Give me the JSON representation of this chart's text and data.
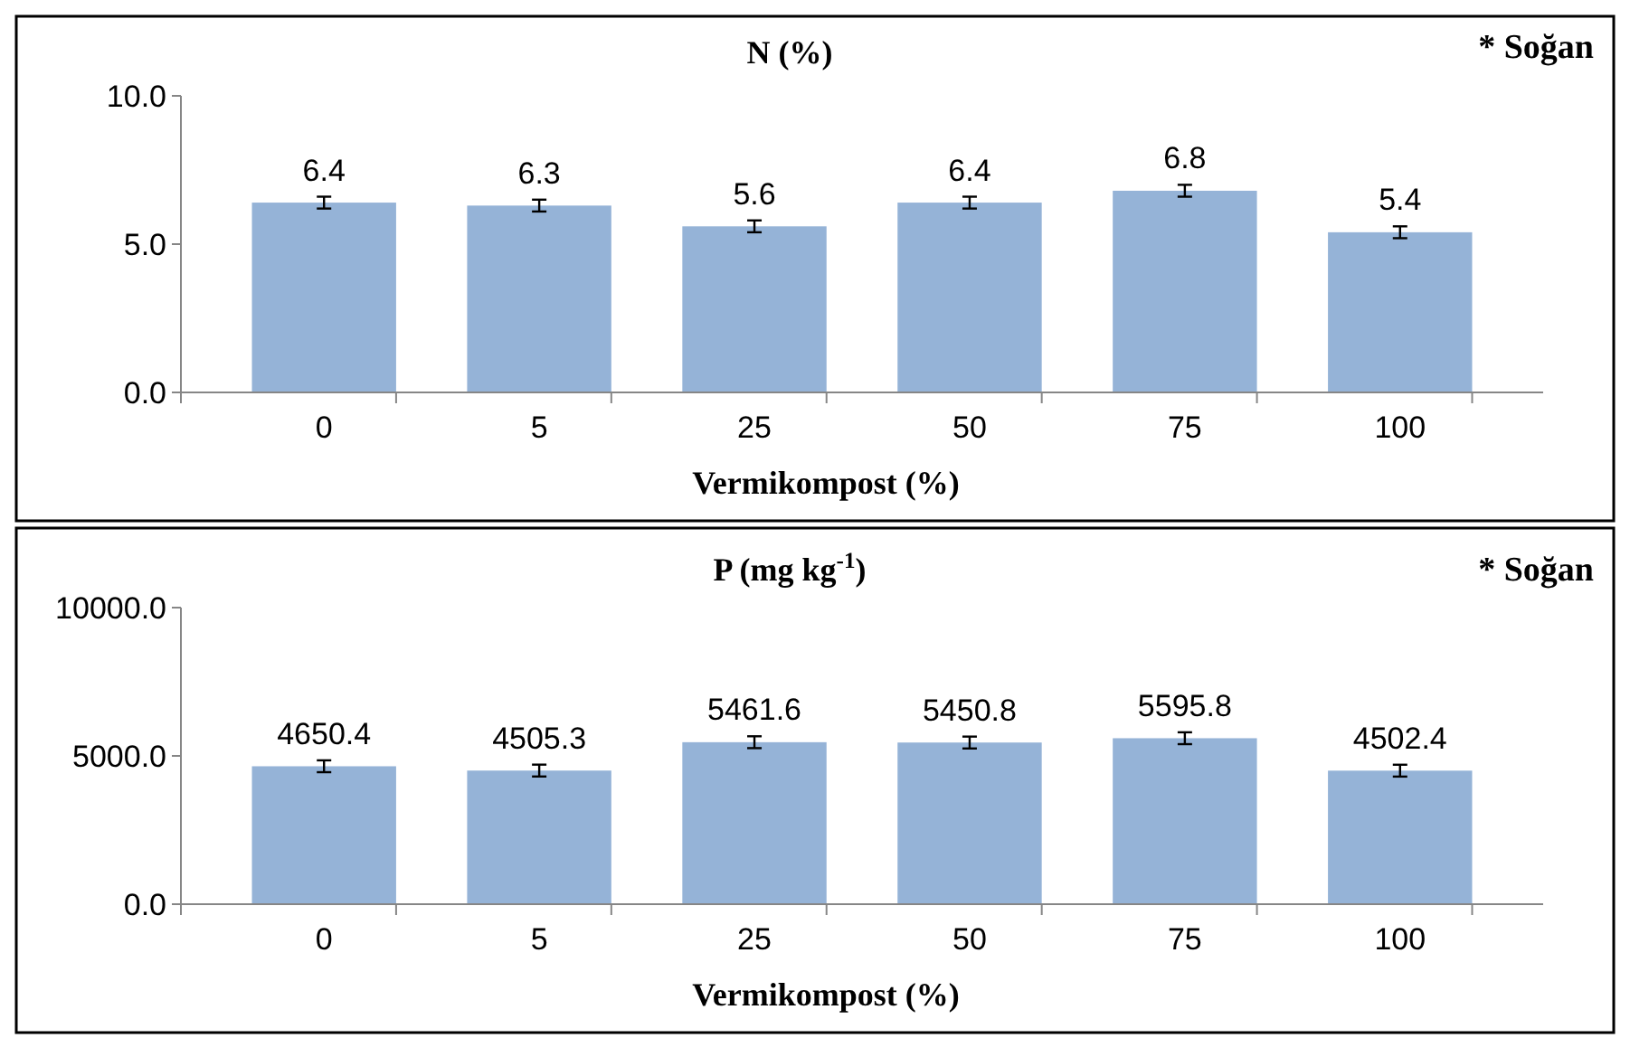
{
  "chart_data": [
    {
      "type": "bar",
      "title": "N (%)",
      "xlabel": "Vermikompost (%)",
      "annotations": [
        "* Soğan"
      ],
      "categories": [
        "0",
        "5",
        "25",
        "50",
        "75",
        "100"
      ],
      "values": [
        6.4,
        6.3,
        5.6,
        6.4,
        6.8,
        5.4
      ],
      "errors": [
        0.2,
        0.2,
        0.2,
        0.2,
        0.2,
        0.2
      ],
      "color": "#95b3d7",
      "ylim": [
        0,
        10
      ],
      "yticks": [
        {
          "value": 0,
          "label": "0.0"
        },
        {
          "value": 5,
          "label": "5.0"
        },
        {
          "value": 10,
          "label": "10.0"
        }
      ],
      "data_labels": true
    },
    {
      "type": "bar",
      "title": "P (mg kg$^{-1}$)",
      "xlabel": "Vermikompost (%)",
      "annotations": [
        "* Soğan"
      ],
      "categories": [
        "0",
        "5",
        "25",
        "50",
        "75",
        "100"
      ],
      "values": [
        4650.4,
        4505.3,
        5461.6,
        5450.8,
        5595.8,
        4502.4
      ],
      "errors": [
        200,
        200,
        200,
        200,
        200,
        200
      ],
      "color": "#95b3d7",
      "ylim": [
        0,
        10000
      ],
      "yticks": [
        {
          "value": 0,
          "label": "0.0"
        },
        {
          "value": 5000,
          "label": "5000.0"
        },
        {
          "value": 10000,
          "label": "10000.0"
        }
      ],
      "data_labels": true
    }
  ]
}
